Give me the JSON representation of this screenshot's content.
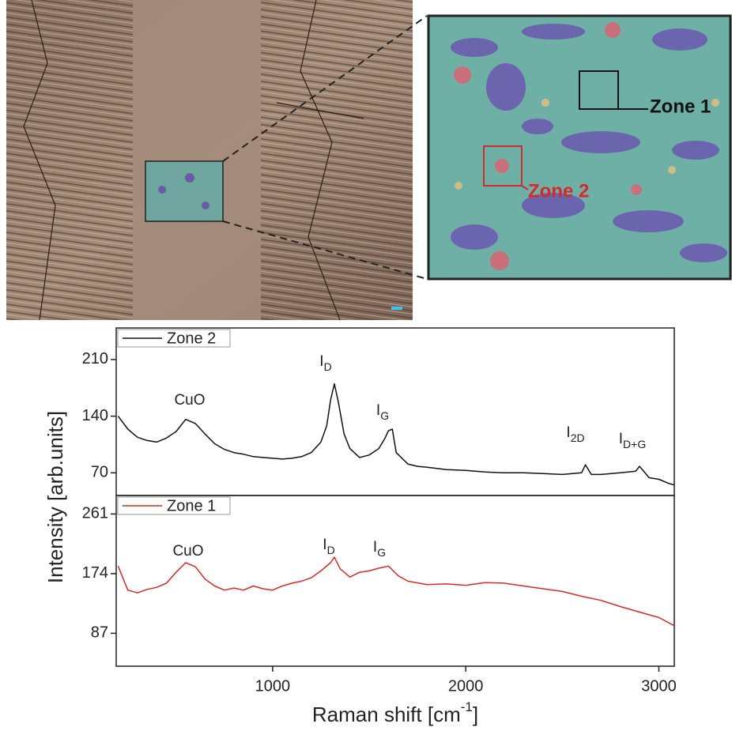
{
  "images": {
    "zone_labels": [
      "Zone 1",
      "Zone 2"
    ]
  },
  "chart_data": [
    {
      "type": "line",
      "ylabel": "Intensity [arb.units]",
      "xlim": [
        190,
        3080
      ],
      "ylim": [
        42,
        249
      ],
      "yticks": [
        70,
        140,
        210
      ],
      "x": [
        200,
        250,
        300,
        350,
        400,
        450,
        500,
        550,
        600,
        650,
        700,
        750,
        800,
        850,
        900,
        950,
        1000,
        1050,
        1100,
        1150,
        1200,
        1250,
        1280,
        1300,
        1320,
        1340,
        1370,
        1400,
        1450,
        1500,
        1550,
        1580,
        1600,
        1620,
        1640,
        1700,
        1750,
        1800,
        1900,
        2000,
        2100,
        2200,
        2300,
        2400,
        2500,
        2600,
        2620,
        2650,
        2700,
        2800,
        2880,
        2900,
        2950,
        3000,
        3050,
        3080
      ],
      "series": [
        {
          "name": "Zone 2",
          "color": "#111111",
          "values": [
            140,
            124,
            114,
            110,
            108,
            113,
            121,
            136,
            131,
            118,
            106,
            99,
            95,
            93,
            90,
            89,
            88,
            87,
            88,
            90,
            95,
            108,
            128,
            160,
            180,
            158,
            118,
            100,
            89,
            92,
            100,
            112,
            122,
            124,
            95,
            81,
            78,
            77,
            74,
            73,
            71,
            70,
            70,
            69,
            68,
            70,
            80,
            68,
            68,
            70,
            72,
            78,
            64,
            62,
            57,
            55
          ]
        }
      ],
      "annotations": [
        {
          "label": "CuO"
        },
        {
          "label": "I",
          "sub": "D"
        },
        {
          "label": "I",
          "sub": "G"
        },
        {
          "label": "I",
          "sub": "2D"
        },
        {
          "label": "I",
          "sub": "D+G"
        }
      ]
    },
    {
      "type": "line",
      "xlabel": "Raman shift [cm",
      "xlabel_sup": "-1",
      "xlabel_end": "]",
      "xlim": [
        190,
        3080
      ],
      "ylim": [
        39,
        288
      ],
      "yticks": [
        87,
        174,
        261
      ],
      "xticks": [
        1000,
        2000,
        3000
      ],
      "x": [
        200,
        250,
        300,
        350,
        400,
        450,
        500,
        550,
        600,
        650,
        700,
        750,
        800,
        850,
        900,
        950,
        1000,
        1050,
        1100,
        1150,
        1200,
        1250,
        1300,
        1320,
        1350,
        1400,
        1450,
        1500,
        1550,
        1600,
        1650,
        1700,
        1800,
        1900,
        2000,
        2100,
        2200,
        2300,
        2400,
        2500,
        2600,
        2700,
        2800,
        2900,
        3000,
        3080
      ],
      "series": [
        {
          "name": "Zone 1",
          "color": "#d42a2a",
          "values": [
            185,
            150,
            146,
            151,
            154,
            160,
            176,
            190,
            184,
            166,
            156,
            150,
            153,
            150,
            156,
            152,
            150,
            156,
            160,
            163,
            168,
            178,
            190,
            198,
            181,
            169,
            176,
            178,
            182,
            185,
            171,
            163,
            158,
            159,
            157,
            161,
            160,
            156,
            152,
            148,
            141,
            135,
            126,
            118,
            110,
            98
          ]
        }
      ],
      "annotations": [
        {
          "label": "CuO"
        },
        {
          "label": "I",
          "sub": "D"
        },
        {
          "label": "I",
          "sub": "G"
        }
      ]
    }
  ]
}
